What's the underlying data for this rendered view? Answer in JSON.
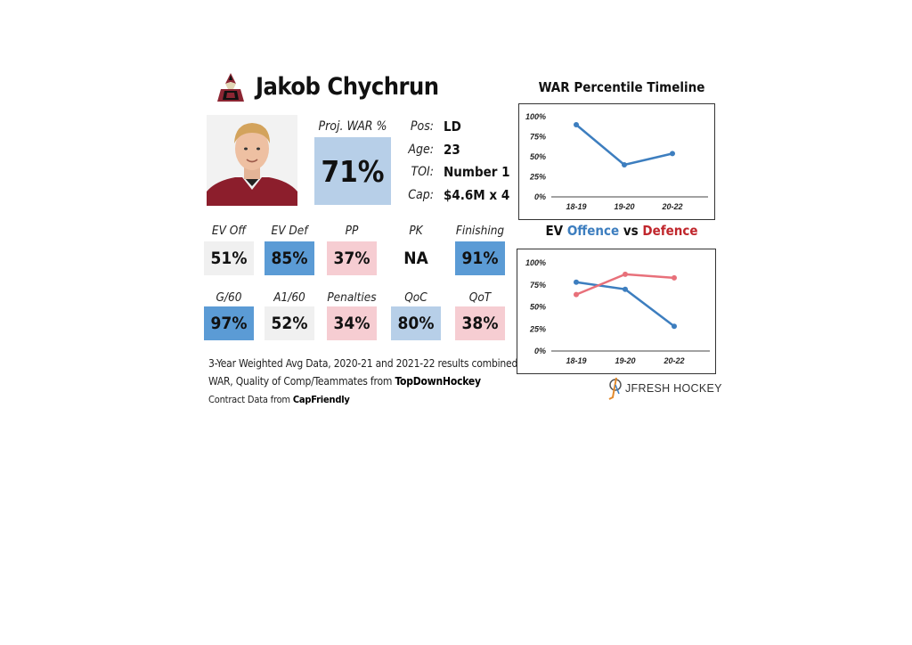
{
  "player": {
    "name": "Jakob Chychrun",
    "proj_war_label": "Proj. WAR %",
    "proj_war_value": "71%",
    "info": [
      {
        "label": "Pos:",
        "value": "LD"
      },
      {
        "label": "Age:",
        "value": "23"
      },
      {
        "label": "TOI:",
        "value": "Number 1"
      },
      {
        "label": "Cap:",
        "value": "$4.6M x 4"
      }
    ]
  },
  "tiles_row1": [
    {
      "label": "EV Off",
      "value": "51%",
      "pct": 51
    },
    {
      "label": "EV Def",
      "value": "85%",
      "pct": 85
    },
    {
      "label": "PP",
      "value": "37%",
      "pct": 37
    },
    {
      "label": "PK",
      "value": "NA",
      "pct": null
    },
    {
      "label": "Finishing",
      "value": "91%",
      "pct": 91
    }
  ],
  "tiles_row2": [
    {
      "label": "G/60",
      "value": "97%",
      "pct": 97
    },
    {
      "label": "A1/60",
      "value": "52%",
      "pct": 52
    },
    {
      "label": "Penalties",
      "value": "34%",
      "pct": 34
    },
    {
      "label": "QoC",
      "value": "80%",
      "pct": 80
    },
    {
      "label": "QoT",
      "value": "38%",
      "pct": 38
    }
  ],
  "notes": {
    "line1": "3-Year Weighted Avg Data, 2020-21 and 2021-22 results combined",
    "line2_prefix": "WAR, Quality of Comp/Teammates from ",
    "line2_source": "TopDownHockey",
    "line3_prefix": "Contract Data from ",
    "line3_source": "CapFriendly"
  },
  "branding": {
    "text": "JFRESH HOCKEY"
  },
  "colors": {
    "high": "#5b9bd5",
    "mid_high": "#b7cfe8",
    "neutral": "#f0f0f0",
    "low": "#f6cdd2",
    "offence": "#3d7ebf",
    "defence": "#c0262c",
    "defence_line": "#e8707a"
  },
  "chart_data": [
    {
      "type": "line",
      "title": "WAR Percentile Timeline",
      "categories": [
        "18-19",
        "19-20",
        "20-22"
      ],
      "series": [
        {
          "values": [
            90,
            40,
            54
          ]
        }
      ],
      "ylim": [
        0,
        100
      ],
      "yticks": [
        "0%",
        "25%",
        "50%",
        "75%",
        "100%"
      ],
      "grid": false
    },
    {
      "type": "line",
      "title_parts": [
        "EV ",
        "Offence",
        " vs ",
        "Defence"
      ],
      "categories": [
        "18-19",
        "19-20",
        "20-22"
      ],
      "series": [
        {
          "name": "Offence",
          "values": [
            78,
            70,
            28
          ]
        },
        {
          "name": "Defence",
          "values": [
            64,
            87,
            83
          ]
        }
      ],
      "ylim": [
        0,
        100
      ],
      "yticks": [
        "0%",
        "25%",
        "50%",
        "75%",
        "100%"
      ],
      "grid": false
    }
  ]
}
